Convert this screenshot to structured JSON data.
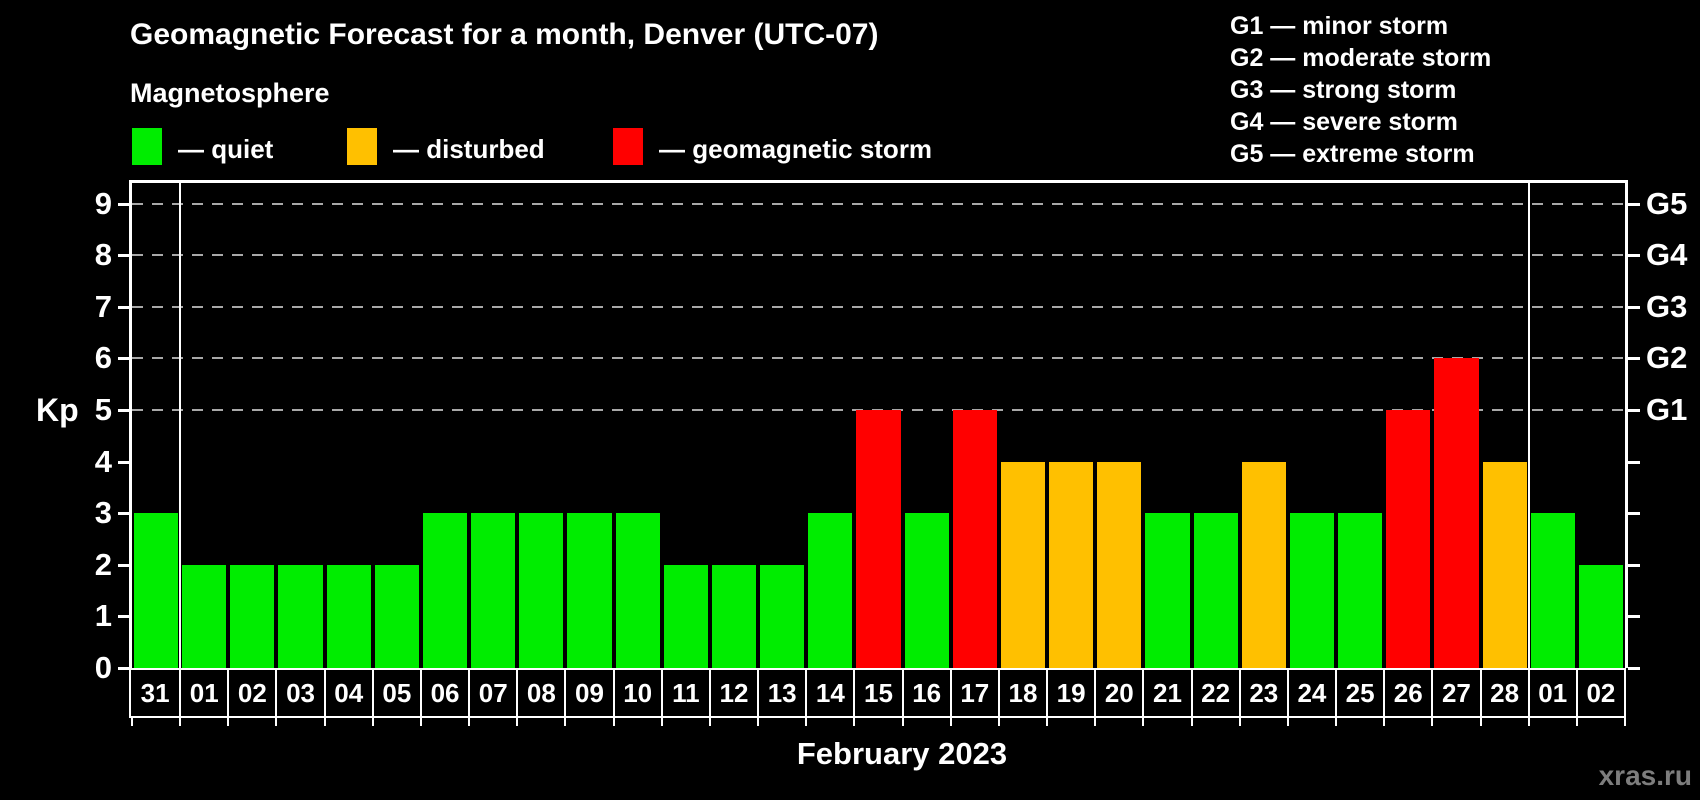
{
  "title": "Geomagnetic Forecast for a month, Denver (UTC-07)",
  "subtitle": "Magnetosphere",
  "legend": {
    "items": [
      {
        "key": "quiet",
        "label": "— quiet",
        "color": "#00ed00"
      },
      {
        "key": "disturbed",
        "label": "— disturbed",
        "color": "#ffc000"
      },
      {
        "key": "storm",
        "label": "— geomagnetic storm",
        "color": "#ff0000"
      }
    ]
  },
  "g_scale_legend": [
    "G1 — minor storm",
    "G2 — moderate storm",
    "G3 — strong storm",
    "G4 — severe storm",
    "G5 — extreme storm"
  ],
  "watermark": "xras.ru",
  "colors": {
    "background": "#000000",
    "axis": "#ffffff",
    "gridline": "#a8a8a8",
    "quiet": "#00ed00",
    "disturbed": "#ffc000",
    "storm": "#ff0000",
    "watermark": "#7d7d7d"
  },
  "chart_data": {
    "type": "bar",
    "title": "Geomagnetic Forecast for a month, Denver (UTC-07)",
    "xlabel": "February 2023",
    "ylabel": "Kp",
    "ylim": [
      0,
      9.4
    ],
    "y_ticks": [
      0,
      1,
      2,
      3,
      4,
      5,
      6,
      7,
      8,
      9
    ],
    "gridlines_at_kp": [
      5,
      6,
      7,
      8,
      9
    ],
    "grid": "dashed horizontal lines at Kp 5–9 only",
    "legend_position": "top-left",
    "right_axis_labels": [
      {
        "kp": 5,
        "label": "G1"
      },
      {
        "kp": 6,
        "label": "G2"
      },
      {
        "kp": 7,
        "label": "G3"
      },
      {
        "kp": 8,
        "label": "G4"
      },
      {
        "kp": 9,
        "label": "G5"
      }
    ],
    "month_separators_after_columns": [
      1,
      29
    ],
    "days": [
      {
        "label": "31",
        "kp": 3,
        "status": "quiet"
      },
      {
        "label": "01",
        "kp": 2,
        "status": "quiet"
      },
      {
        "label": "02",
        "kp": 2,
        "status": "quiet"
      },
      {
        "label": "03",
        "kp": 2,
        "status": "quiet"
      },
      {
        "label": "04",
        "kp": 2,
        "status": "quiet"
      },
      {
        "label": "05",
        "kp": 2,
        "status": "quiet"
      },
      {
        "label": "06",
        "kp": 3,
        "status": "quiet"
      },
      {
        "label": "07",
        "kp": 3,
        "status": "quiet"
      },
      {
        "label": "08",
        "kp": 3,
        "status": "quiet"
      },
      {
        "label": "09",
        "kp": 3,
        "status": "quiet"
      },
      {
        "label": "10",
        "kp": 3,
        "status": "quiet"
      },
      {
        "label": "11",
        "kp": 2,
        "status": "quiet"
      },
      {
        "label": "12",
        "kp": 2,
        "status": "quiet"
      },
      {
        "label": "13",
        "kp": 2,
        "status": "quiet"
      },
      {
        "label": "14",
        "kp": 3,
        "status": "quiet"
      },
      {
        "label": "15",
        "kp": 5,
        "status": "storm"
      },
      {
        "label": "16",
        "kp": 3,
        "status": "quiet"
      },
      {
        "label": "17",
        "kp": 5,
        "status": "storm"
      },
      {
        "label": "18",
        "kp": 4,
        "status": "disturbed"
      },
      {
        "label": "19",
        "kp": 4,
        "status": "disturbed"
      },
      {
        "label": "20",
        "kp": 4,
        "status": "disturbed"
      },
      {
        "label": "21",
        "kp": 3,
        "status": "quiet"
      },
      {
        "label": "22",
        "kp": 3,
        "status": "quiet"
      },
      {
        "label": "23",
        "kp": 4,
        "status": "disturbed"
      },
      {
        "label": "24",
        "kp": 3,
        "status": "quiet"
      },
      {
        "label": "25",
        "kp": 3,
        "status": "quiet"
      },
      {
        "label": "26",
        "kp": 5,
        "status": "storm"
      },
      {
        "label": "27",
        "kp": 6,
        "status": "storm"
      },
      {
        "label": "28",
        "kp": 4,
        "status": "disturbed"
      },
      {
        "label": "01",
        "kp": 3,
        "status": "quiet"
      },
      {
        "label": "02",
        "kp": 2,
        "status": "quiet"
      }
    ]
  }
}
